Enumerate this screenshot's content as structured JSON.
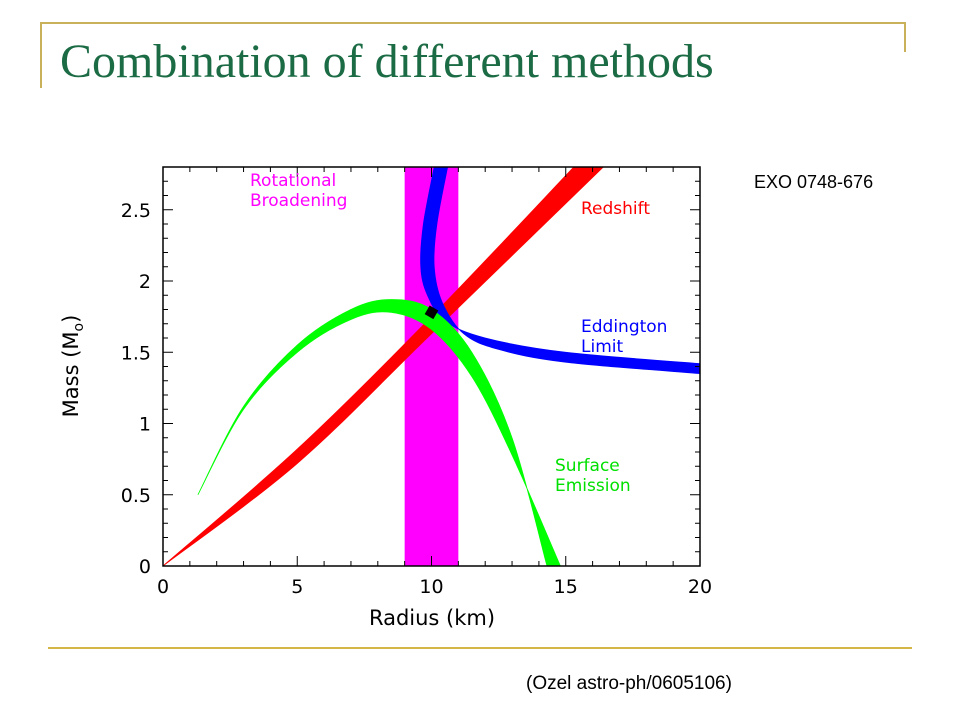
{
  "slide": {
    "title": "Combination of different methods",
    "source_label": "EXO 0748-676",
    "citation": "(Ozel astro-ph/0605106)",
    "colors": {
      "title": "#1b6b45",
      "frame": "#c8b15a",
      "rule": "#d4b648"
    }
  },
  "chart_data": {
    "type": "area",
    "title": "",
    "xlabel": "Radius (km)",
    "ylabel": "Mass (M",
    "ylabel_subscript": "o",
    "ylabel_suffix": ")",
    "xlim": [
      0,
      20
    ],
    "ylim": [
      0,
      2.8
    ],
    "x_ticks": [
      0,
      5,
      10,
      15,
      20
    ],
    "x_tick_labels": [
      "0",
      "5",
      "10",
      "15",
      "20"
    ],
    "y_ticks": [
      0,
      0.5,
      1,
      1.5,
      2,
      2.5
    ],
    "y_tick_labels": [
      "0",
      "0.5",
      "1",
      "1.5",
      "2",
      "2.5"
    ],
    "grid": false,
    "series": [
      {
        "name": "Rotational Broadening",
        "label_lines": [
          "Rotational",
          "Broadening"
        ],
        "color": "#ff00ff",
        "kind": "vertical_band",
        "r_min": 9.0,
        "r_max": 11.0
      },
      {
        "name": "Redshift",
        "label_lines": [
          "Redshift"
        ],
        "color": "#ff0000",
        "kind": "band",
        "upper": [
          [
            0,
            0
          ],
          [
            5,
            0.82
          ],
          [
            10,
            1.75
          ],
          [
            15.3,
            2.8
          ]
        ],
        "lower": [
          [
            0,
            0
          ],
          [
            5,
            0.72
          ],
          [
            10,
            1.63
          ],
          [
            16.4,
            2.8
          ]
        ]
      },
      {
        "name": "Eddington Limit",
        "label_lines": [
          "Eddington",
          "Limit"
        ],
        "color": "#0000ff",
        "kind": "band",
        "upper": [
          [
            10.1,
            2.8
          ],
          [
            9.7,
            2.4
          ],
          [
            9.6,
            2.1
          ],
          [
            9.85,
            1.9
          ],
          [
            10.5,
            1.72
          ],
          [
            12,
            1.6
          ],
          [
            15,
            1.5
          ],
          [
            20,
            1.42
          ]
        ],
        "lower": [
          [
            10.6,
            2.8
          ],
          [
            10.2,
            2.4
          ],
          [
            10.1,
            2.1
          ],
          [
            10.4,
            1.85
          ],
          [
            11.2,
            1.63
          ],
          [
            12.5,
            1.52
          ],
          [
            15,
            1.43
          ],
          [
            20,
            1.35
          ]
        ]
      },
      {
        "name": "Surface Emission",
        "label_lines": [
          "Surface",
          "Emission"
        ],
        "color": "#00ff00",
        "kind": "band",
        "upper": [
          [
            1.3,
            0.5
          ],
          [
            3,
            1.12
          ],
          [
            5,
            1.55
          ],
          [
            7,
            1.8
          ],
          [
            8.5,
            1.87
          ],
          [
            10,
            1.8
          ],
          [
            11.5,
            1.5
          ],
          [
            13,
            0.9
          ],
          [
            14.3,
            0
          ]
        ],
        "lower": [
          [
            1.3,
            0.5
          ],
          [
            3,
            1.1
          ],
          [
            5,
            1.5
          ],
          [
            7,
            1.73
          ],
          [
            8.5,
            1.78
          ],
          [
            10,
            1.66
          ],
          [
            11.5,
            1.33
          ],
          [
            13,
            0.78
          ],
          [
            14.8,
            0
          ]
        ]
      }
    ],
    "solution_point": {
      "x": 10.0,
      "y": 1.78,
      "color": "#000000"
    }
  }
}
